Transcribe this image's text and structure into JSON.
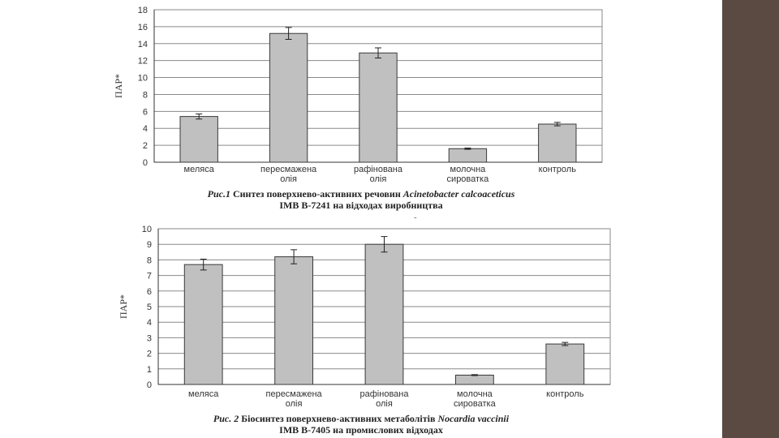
{
  "side_band_color": "#5a4a41",
  "bar_color": "#c0c0c0",
  "stray_mark": "-",
  "chart_data": [
    {
      "type": "bar",
      "title": "",
      "xlabel": "",
      "ylabel": "ПАР*",
      "ylim": [
        0,
        18
      ],
      "yticks": [
        0,
        2,
        4,
        6,
        8,
        10,
        12,
        14,
        16,
        18
      ],
      "grid": true,
      "categories": [
        [
          "меляса"
        ],
        [
          "пересмажена",
          "олія"
        ],
        [
          "рафінована",
          "олія"
        ],
        [
          "молочна",
          "сироватка"
        ],
        [
          "контроль"
        ]
      ],
      "values": [
        5.4,
        15.2,
        12.9,
        1.6,
        4.5
      ],
      "errors": [
        0.3,
        0.7,
        0.6,
        0.08,
        0.2
      ],
      "caption": {
        "line1_prefix": "Рис.1",
        "line1_text": " Синтез поверхнево-активних речовин ",
        "line1_species": "Acinetobacter calcoaceticus",
        "line2": "IMB B-7241 на відходах виробництва"
      }
    },
    {
      "type": "bar",
      "title": "",
      "xlabel": "",
      "ylabel": "ПАР*",
      "ylim": [
        0,
        10
      ],
      "yticks": [
        0,
        1,
        2,
        3,
        4,
        5,
        6,
        7,
        8,
        9,
        10
      ],
      "grid": true,
      "categories": [
        [
          "меляса"
        ],
        [
          "пересмажена",
          "олія"
        ],
        [
          "рафінована",
          "олія"
        ],
        [
          "молочна",
          "сироватка"
        ],
        [
          "контроль"
        ]
      ],
      "values": [
        7.7,
        8.2,
        9.0,
        0.6,
        2.6
      ],
      "errors": [
        0.35,
        0.45,
        0.5,
        0.03,
        0.1
      ],
      "caption": {
        "line1_prefix": "Рис. 2",
        "line1_text": " Біосинтез поверхнево-активних метаболітів ",
        "line1_species": "Nocardia vaccinii",
        "line2": "IMB B-7405 на промислових відходах"
      }
    }
  ]
}
